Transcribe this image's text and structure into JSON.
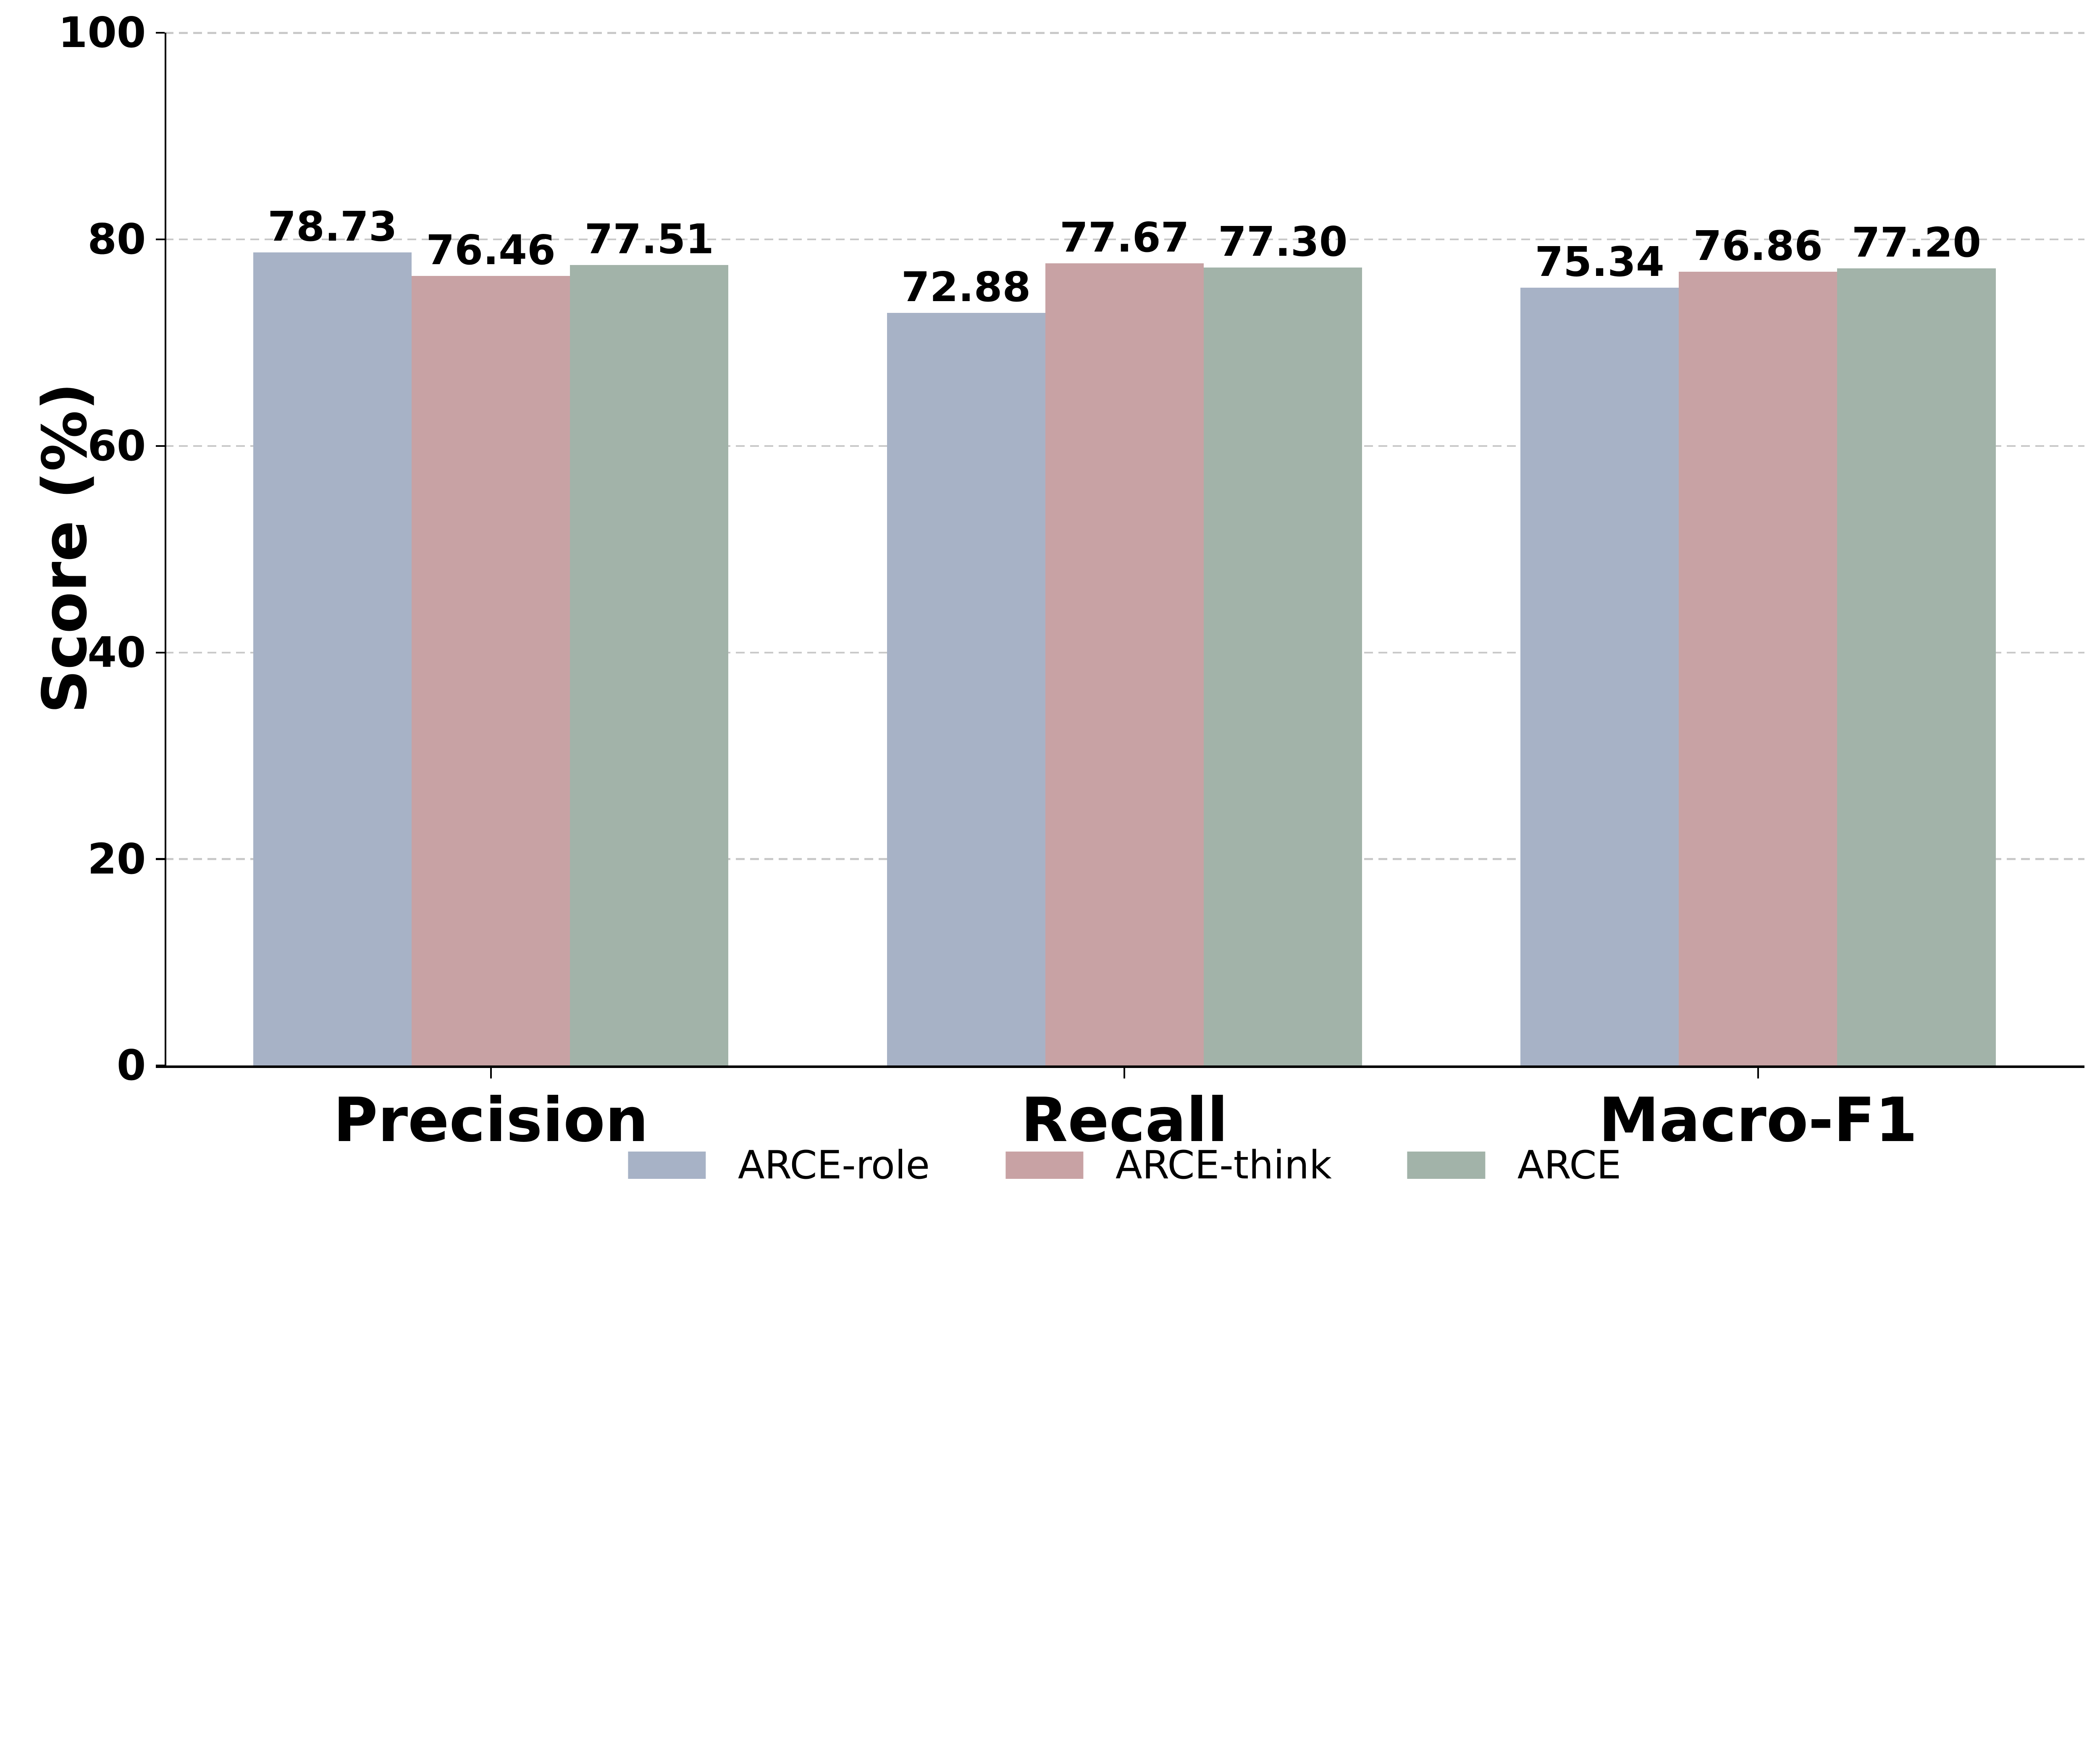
{
  "chart_data": {
    "type": "bar",
    "title": "",
    "xlabel": "",
    "ylabel": "Score (%)",
    "categories": [
      "Precision",
      "Recall",
      "Macro-F1"
    ],
    "series": [
      {
        "name": "ARCE-role",
        "color": "#a7b2c6",
        "values": [
          78.73,
          72.88,
          75.34
        ],
        "labels": [
          "78.73",
          "72.88",
          "75.34"
        ]
      },
      {
        "name": "ARCE-think",
        "color": "#c8a2a4",
        "values": [
          76.46,
          77.67,
          76.86
        ],
        "labels": [
          "76.46",
          "77.67",
          "76.86"
        ]
      },
      {
        "name": "ARCE",
        "color": "#a2b3a9",
        "values": [
          77.51,
          77.3,
          77.2
        ],
        "labels": [
          "77.51",
          "77.30",
          "77.20"
        ]
      }
    ],
    "ylim": [
      0,
      100
    ],
    "yticks": [
      0,
      20,
      40,
      60,
      80,
      100
    ],
    "ytick_labels": [
      "0",
      "20",
      "40",
      "60",
      "80",
      "100"
    ],
    "grid": "horizontal-dashed",
    "legend_position": "bottom-center",
    "value_labels": "on",
    "colors": {
      "grid": "#c9c9c9",
      "spine": "#000000",
      "text": "#000000",
      "background": "#ffffff"
    }
  }
}
